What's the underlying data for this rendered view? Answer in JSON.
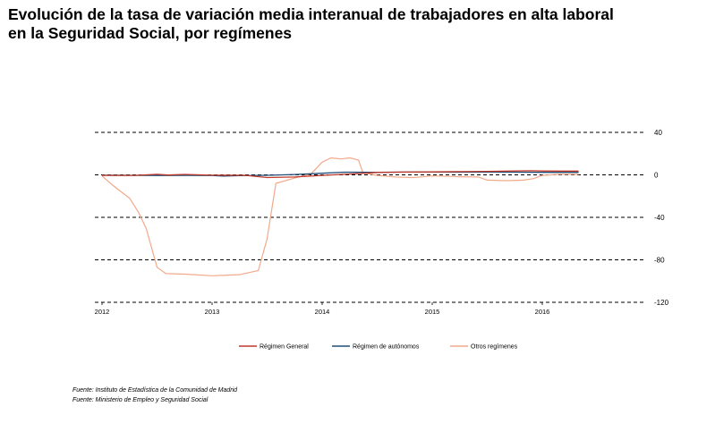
{
  "title": {
    "line1": "Evolución de la tasa de variación media interanual de trabajadores en alta laboral",
    "line2": "en la Seguridad Social, por  regímenes"
  },
  "sources": [
    "Fuente: Instituto de Estadística de la Comunidad de Madrid",
    "Fuente: Ministerio de Empleo y Seguridad Social"
  ],
  "chart_data": {
    "type": "line",
    "xlim": [
      2012.0,
      2017.0
    ],
    "ylim": [
      -120,
      40
    ],
    "x_ticks": [
      2012,
      2013,
      2014,
      2015,
      2016
    ],
    "x_tick_labels": [
      "2012",
      "2013",
      "2014",
      "2015",
      "2016"
    ],
    "y_ticks": [
      40,
      0,
      -40,
      -80,
      -120
    ],
    "y_tick_labels": [
      "40",
      "0",
      "-40",
      "-80",
      "-120"
    ],
    "grid": "horizontal dashed",
    "legend_position": "bottom",
    "series": [
      {
        "name": "Régimen General",
        "color": "#c0392b",
        "points": [
          [
            2012.0,
            -0.5
          ],
          [
            2012.3,
            -0.5
          ],
          [
            2012.5,
            0.5
          ],
          [
            2012.6,
            -0.2
          ],
          [
            2012.75,
            0.4
          ],
          [
            2013.0,
            -0.3
          ],
          [
            2013.3,
            -0.4
          ],
          [
            2013.5,
            -2.5
          ],
          [
            2013.75,
            -2.0
          ],
          [
            2014.0,
            -0.5
          ],
          [
            2014.25,
            0.8
          ],
          [
            2014.5,
            2.3
          ],
          [
            2014.75,
            2.6
          ],
          [
            2015.0,
            2.8
          ],
          [
            2015.25,
            3.0
          ],
          [
            2015.5,
            3.3
          ],
          [
            2015.75,
            3.6
          ],
          [
            2015.9,
            3.9
          ],
          [
            2016.0,
            3.6
          ],
          [
            2016.2,
            3.5
          ],
          [
            2016.33,
            3.5
          ]
        ]
      },
      {
        "name": "Régimen de autónomos",
        "color": "#1f4e79",
        "points": [
          [
            2012.0,
            -0.3
          ],
          [
            2012.25,
            -0.4
          ],
          [
            2012.5,
            -0.6
          ],
          [
            2012.75,
            -0.5
          ],
          [
            2013.0,
            -0.6
          ],
          [
            2013.1,
            -1.2
          ],
          [
            2013.25,
            -0.8
          ],
          [
            2013.5,
            -0.4
          ],
          [
            2013.75,
            0.3
          ],
          [
            2014.0,
            1.5
          ],
          [
            2014.2,
            2.5
          ],
          [
            2014.5,
            2.4
          ],
          [
            2014.75,
            2.6
          ],
          [
            2015.0,
            2.7
          ],
          [
            2015.25,
            2.5
          ],
          [
            2015.5,
            2.6
          ],
          [
            2015.75,
            2.5
          ],
          [
            2016.0,
            2.4
          ],
          [
            2016.2,
            2.4
          ],
          [
            2016.33,
            2.4
          ]
        ]
      },
      {
        "name": "Otros regímenes",
        "color": "#f2a98a",
        "points": [
          [
            2012.0,
            -1.0
          ],
          [
            2012.1,
            -10
          ],
          [
            2012.25,
            -22
          ],
          [
            2012.33,
            -35
          ],
          [
            2012.4,
            -50
          ],
          [
            2012.5,
            -87
          ],
          [
            2012.58,
            -93
          ],
          [
            2012.75,
            -93.5
          ],
          [
            2013.0,
            -95
          ],
          [
            2013.25,
            -94
          ],
          [
            2013.42,
            -90
          ],
          [
            2013.5,
            -60
          ],
          [
            2013.58,
            -8
          ],
          [
            2013.75,
            -3
          ],
          [
            2013.9,
            1
          ],
          [
            2014.0,
            12
          ],
          [
            2014.08,
            16
          ],
          [
            2014.17,
            15
          ],
          [
            2014.25,
            16
          ],
          [
            2014.33,
            14
          ],
          [
            2014.37,
            2
          ],
          [
            2014.5,
            -0.5
          ],
          [
            2014.67,
            -2
          ],
          [
            2014.83,
            -2.5
          ],
          [
            2015.0,
            -1
          ],
          [
            2015.25,
            -1.8
          ],
          [
            2015.42,
            -2
          ],
          [
            2015.5,
            -5
          ],
          [
            2015.67,
            -5.5
          ],
          [
            2015.83,
            -5
          ],
          [
            2015.92,
            -3.5
          ],
          [
            2016.0,
            -0.5
          ],
          [
            2016.15,
            0.5
          ],
          [
            2016.33,
            0.5
          ]
        ]
      }
    ]
  }
}
